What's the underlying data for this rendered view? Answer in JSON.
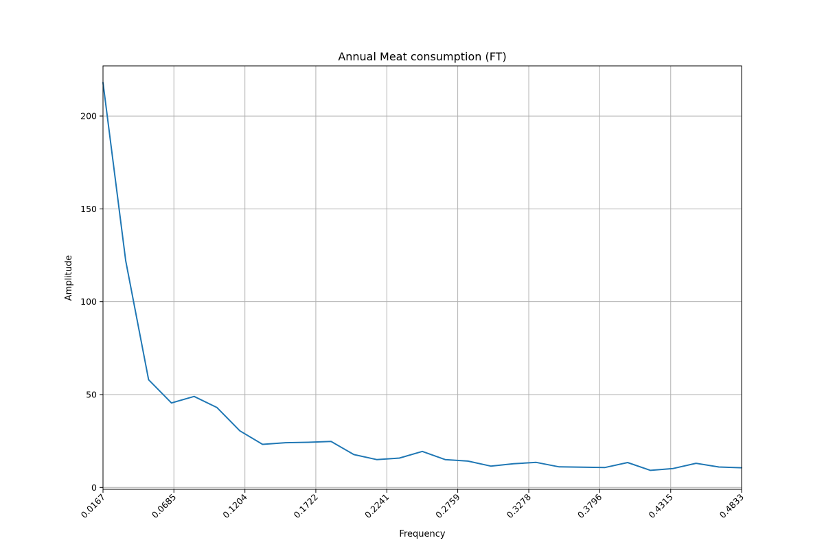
{
  "chart_data": {
    "type": "line",
    "title": "Annual Meat consumption (FT)",
    "xlabel": "Frequency",
    "ylabel": "Amplitude",
    "xlim": [
      0.0167,
      0.4833
    ],
    "ylim": [
      -1,
      227
    ],
    "x_ticks": [
      0.0167,
      0.0685,
      0.1204,
      0.1722,
      0.2241,
      0.2759,
      0.3278,
      0.3796,
      0.4315,
      0.4833
    ],
    "x_tick_labels": [
      "0.0167",
      "0.0685",
      "0.1204",
      "0.1722",
      "0.2241",
      "0.2759",
      "0.3278",
      "0.3796",
      "0.4315",
      "0.4833"
    ],
    "y_ticks": [
      0,
      50,
      100,
      150,
      200
    ],
    "y_tick_labels": [
      "0",
      "50",
      "100",
      "150",
      "200"
    ],
    "grid": true,
    "series": [
      {
        "color": "#1f77b4",
        "x": [
          0.0167,
          0.0333,
          0.05,
          0.0667,
          0.0833,
          0.1,
          0.1167,
          0.1333,
          0.15,
          0.1667,
          0.1833,
          0.2,
          0.2167,
          0.2333,
          0.25,
          0.2667,
          0.2833,
          0.3,
          0.3167,
          0.3333,
          0.35,
          0.3667,
          0.3833,
          0.4,
          0.4167,
          0.4333,
          0.45,
          0.4667,
          0.4833
        ],
        "values": [
          218,
          122,
          58,
          45.5,
          49,
          43,
          30.5,
          23.2,
          24.1,
          24.3,
          24.8,
          17.7,
          15,
          15.8,
          19.4,
          15,
          14.2,
          11.5,
          12.8,
          13.5,
          11.1,
          10.9,
          10.7,
          13.4,
          9.2,
          10.2,
          13,
          11,
          10.6
        ]
      }
    ]
  }
}
